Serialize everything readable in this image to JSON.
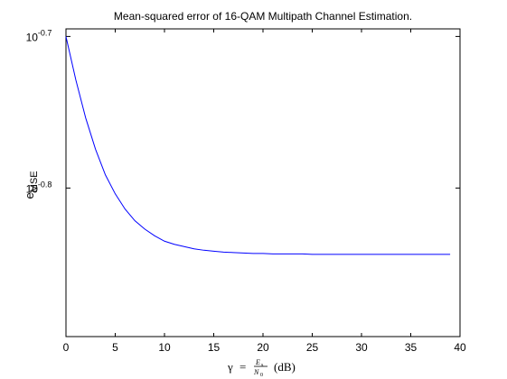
{
  "chart_data": {
    "type": "line",
    "title": "Mean-squared error of 16-QAM Multipath Channel Estimation.",
    "ylabel": {
      "base": "e",
      "subscript": "MSE"
    },
    "xlabel": {
      "gamma": "γ",
      "equals": "=",
      "frac_num": "E",
      "frac_num_sub": "s",
      "frac_den": "N",
      "frac_den_sub": "0",
      "unit": "(dB)"
    },
    "x_scale": "linear",
    "y_scale": "log",
    "xlim": [
      0,
      40
    ],
    "ylim_log10": [
      -0.898,
      -0.695
    ],
    "x_ticks": [
      0,
      5,
      10,
      15,
      20,
      25,
      30,
      35,
      40
    ],
    "y_ticks": [
      {
        "base": "10",
        "exp": "-0.7",
        "log10": -0.7
      },
      {
        "base": "10",
        "exp": "-0.8",
        "log10": -0.8
      }
    ],
    "grid": false,
    "legend": "none",
    "series": [
      {
        "color": "#0000ff",
        "x": [
          0,
          1,
          2,
          3,
          4,
          5,
          6,
          7,
          8,
          9,
          10,
          11,
          12,
          13,
          14,
          15,
          16,
          17,
          18,
          19,
          20,
          21,
          22,
          23,
          24,
          25,
          26,
          27,
          28,
          29,
          30,
          31,
          32,
          33,
          34,
          35,
          36,
          37,
          38,
          39
        ],
        "y": [
          0.1995,
          0.1868,
          0.1763,
          0.1681,
          0.1617,
          0.1571,
          0.1535,
          0.1508,
          0.1489,
          0.1474,
          0.1462,
          0.1455,
          0.145,
          0.1445,
          0.1442,
          0.144,
          0.1438,
          0.1437,
          0.1436,
          0.1435,
          0.1435,
          0.1434,
          0.1434,
          0.1434,
          0.1434,
          0.1433,
          0.1433,
          0.1433,
          0.1433,
          0.1433,
          0.1433,
          0.1433,
          0.1433,
          0.1433,
          0.1433,
          0.1433,
          0.1433,
          0.1433,
          0.1433,
          0.1433
        ]
      }
    ]
  }
}
